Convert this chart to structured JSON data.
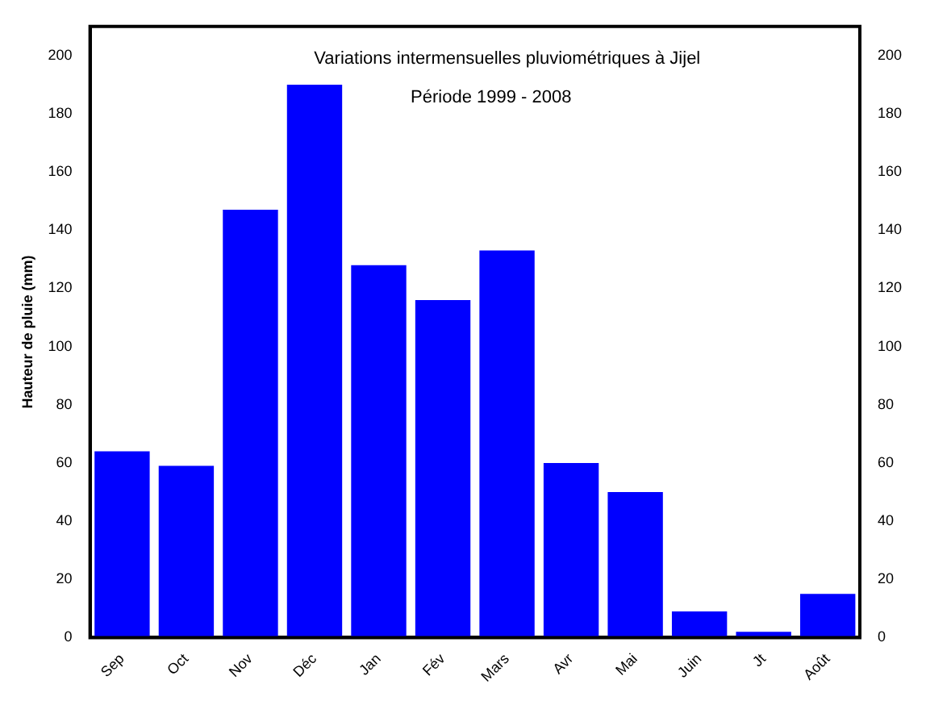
{
  "chart_data": {
    "type": "bar",
    "title": "Variations intermensuelles pluviométriques à Jijel",
    "subtitle": "Période 1999 - 2008",
    "ylabel": "Hauteur de pluie (mm)",
    "categories": [
      "Sep",
      "Oct",
      "Nov",
      "Déc",
      "Jan",
      "Fév",
      "Mars",
      "Avr",
      "Mai",
      "Juin",
      "Jt",
      "Août"
    ],
    "values": [
      64,
      59,
      147,
      190,
      128,
      116,
      133,
      60,
      50,
      9,
      2,
      15
    ],
    "color": "#0000ff",
    "ylim": [
      0,
      210
    ],
    "yticks": [
      0,
      20,
      40,
      60,
      80,
      100,
      120,
      140,
      160,
      180,
      200
    ],
    "y2lim": [
      0,
      210
    ],
    "y2ticks": [
      0,
      20,
      40,
      60,
      80,
      100,
      120,
      140,
      160,
      180,
      200
    ],
    "grid": false,
    "legend": false
  }
}
